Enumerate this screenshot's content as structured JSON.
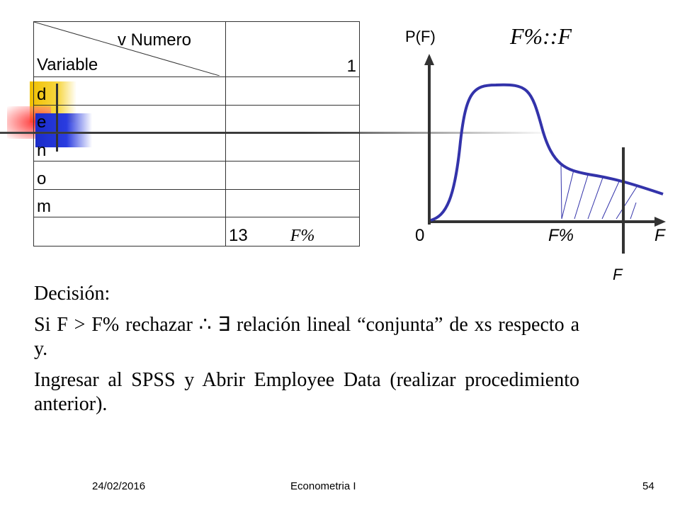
{
  "table": {
    "header_top": "v Numero",
    "header_bottom": "Variable",
    "header_value": "1",
    "rows": [
      "d",
      "e",
      "n",
      "o",
      "m"
    ],
    "total": "13",
    "total_label": "F%"
  },
  "graph": {
    "y_label": "P(F)",
    "formula": "F%::F",
    "origin": "0",
    "x_critical": "F%",
    "x_label": "F",
    "f_marker": "F"
  },
  "text": {
    "decision_heading": "Decisión:",
    "line1": "Si F > F% rechazar ∴ ∃ relación lineal “conjunta” de xs respecto a y.",
    "line2": "Ingresar al SPSS y Abrir Employee Data (realizar procedimiento anterior)."
  },
  "footer": {
    "date": "24/02/2016",
    "course": "Econometria I",
    "page": "54"
  },
  "colors": {
    "curve": "#3333aa",
    "hatch": "#3333aa",
    "deco_yellow": "#f5c400",
    "deco_blue": "#2233cc",
    "deco_red": "#ee3333"
  }
}
